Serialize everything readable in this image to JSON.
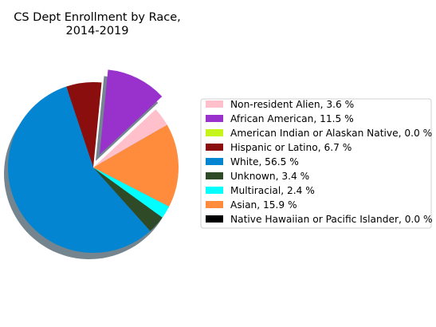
{
  "chart_data": {
    "type": "pie",
    "title_lines": [
      "CS Dept Enrollment by Race,",
      "2014-2019"
    ],
    "shadow": true,
    "legend_position": "right",
    "exploded": [
      "African American"
    ],
    "slices": [
      {
        "label": "Non-resident Alien",
        "value": 3.6,
        "color": "#ffc0cb",
        "legend": "Non-resident Alien, 3.6 %"
      },
      {
        "label": "African American",
        "value": 11.5,
        "color": "#9932cc",
        "legend": "African American, 11.5 %"
      },
      {
        "label": "American Indian or Alaskan Native",
        "value": 0.0,
        "color": "#c6f51b",
        "legend": "American Indian or Alaskan Native, 0.0 %"
      },
      {
        "label": "Hispanic or Latino",
        "value": 6.7,
        "color": "#8b0e0e",
        "legend": "Hispanic or Latino, 6.7 %"
      },
      {
        "label": "White",
        "value": 56.5,
        "color": "#0485d1",
        "legend": "White, 56.5 %"
      },
      {
        "label": "Unknown",
        "value": 3.4,
        "color": "#2f4a26",
        "legend": "Unknown, 3.4 %"
      },
      {
        "label": "Multiracial",
        "value": 2.4,
        "color": "#00ffff",
        "legend": "Multiracial, 2.4 %"
      },
      {
        "label": "Asian",
        "value": 15.9,
        "color": "#ff8c3d",
        "legend": "Asian, 15.9 %"
      },
      {
        "label": "Native Hawaiian or Pacific Islander",
        "value": 0.0,
        "color": "#000000",
        "legend": "Native Hawaiian or Pacific Islander, 0.0 %"
      }
    ]
  }
}
